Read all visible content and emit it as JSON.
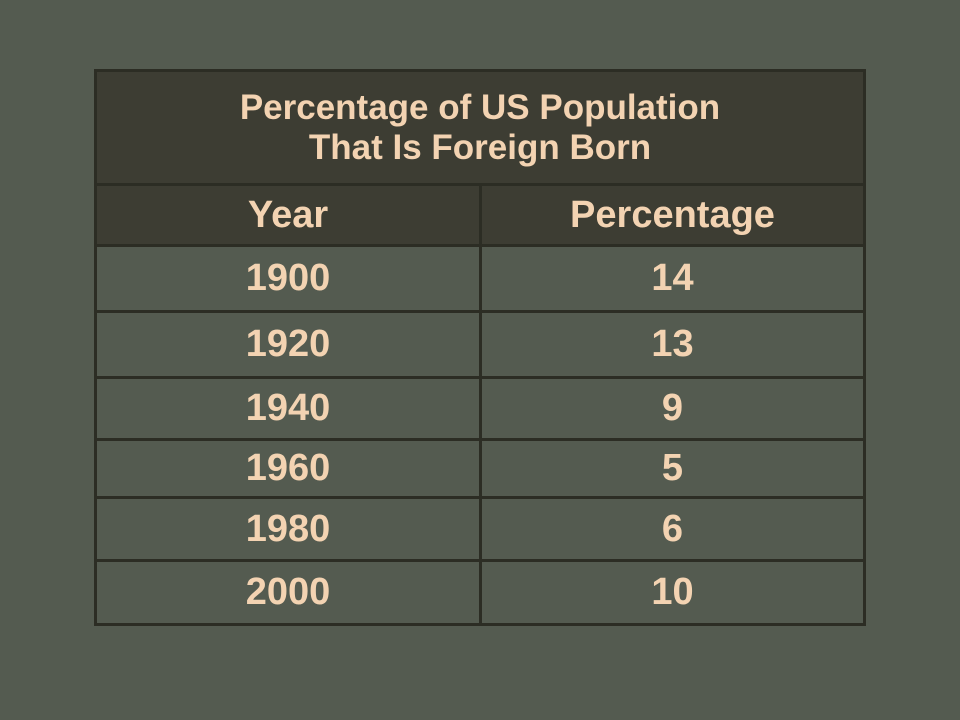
{
  "chart_data": {
    "type": "table",
    "title_lines": [
      "Percentage of US Population",
      "That Is Foreign Born"
    ],
    "columns": [
      "Year",
      "Percentage"
    ],
    "rows": [
      {
        "year": "1900",
        "percentage": "14"
      },
      {
        "year": "1920",
        "percentage": "13"
      },
      {
        "year": "1940",
        "percentage": "9"
      },
      {
        "year": "1960",
        "percentage": "5"
      },
      {
        "year": "1980",
        "percentage": "6"
      },
      {
        "year": "2000",
        "percentage": "10"
      }
    ],
    "colors": {
      "background": "#545b50",
      "header_fill": "#3d3d33",
      "border": "#2c2d24",
      "text": "#f3d3b2"
    }
  }
}
